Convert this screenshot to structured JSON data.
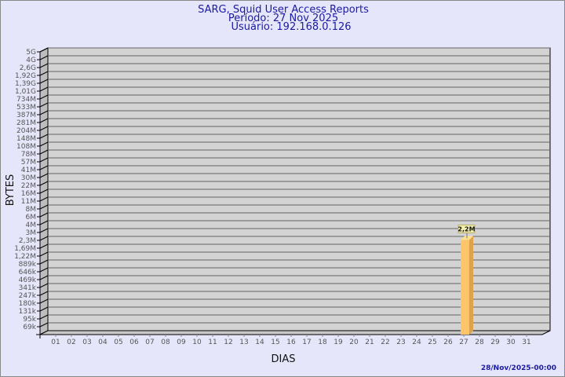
{
  "chart_data": {
    "type": "bar",
    "title": "SARG, Squid User Access Reports",
    "subtitle_lines": [
      "Período: 27 Nov 2025",
      "Usuário: 192.168.0.126"
    ],
    "xlabel": "DIAS",
    "ylabel": "BYTES",
    "y_scale": "log",
    "grid": true,
    "categories": [
      "01",
      "02",
      "03",
      "04",
      "05",
      "06",
      "07",
      "08",
      "09",
      "10",
      "11",
      "12",
      "13",
      "14",
      "15",
      "16",
      "17",
      "18",
      "19",
      "20",
      "21",
      "22",
      "23",
      "24",
      "25",
      "26",
      "27",
      "28",
      "29",
      "30",
      "31"
    ],
    "y_tick_labels": [
      "5G",
      "4G",
      "2,6G",
      "1,92G",
      "1,39G",
      "1,01G",
      "734M",
      "533M",
      "387M",
      "281M",
      "204M",
      "148M",
      "108M",
      "78M",
      "57M",
      "41M",
      "30M",
      "22M",
      "16M",
      "11M",
      "8M",
      "6M",
      "4M",
      "3M",
      "2,3M",
      "1,69M",
      "1,22M",
      "889k",
      "646k",
      "469k",
      "341k",
      "247k",
      "180k",
      "131k",
      "95k",
      "69k"
    ],
    "series": [
      {
        "points": [
          {
            "x": "27",
            "y": 2200000,
            "label": "2,2M"
          }
        ]
      }
    ],
    "colors": {
      "bar": "#fec46a",
      "bar_side": "#dca34a",
      "bar_top": "#ffe08c",
      "wall": "#d3d3d3",
      "background": "#e6e6fa"
    }
  },
  "footer": {
    "timestamp": "28/Nov/2025-00:00"
  }
}
